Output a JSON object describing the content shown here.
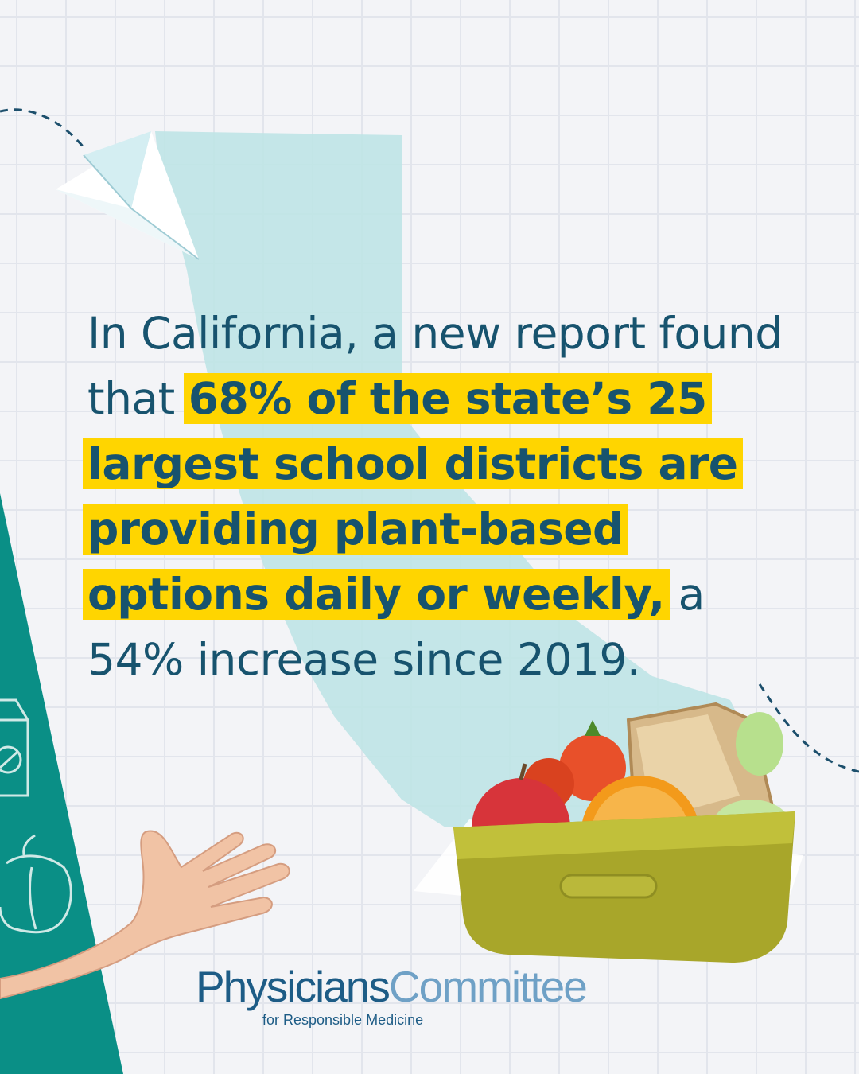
{
  "headline": {
    "intro": "In California, a new report found that ",
    "highlight": "68% of the state’s 25 largest school districts are providing plant-based options daily or weekly,",
    "outro": " a 54% increase since 2019."
  },
  "logo": {
    "word1": "Physicians",
    "word2": "Committee",
    "tagline": "for Responsible Medicine"
  },
  "colors": {
    "headline_text": "#17536e",
    "highlight": "#ffd500",
    "map_fill": "#bfe4e6",
    "teal_band": "#0a8f86",
    "logo_dark": "#1d5c86",
    "logo_light": "#6fa1c6"
  },
  "icons": [
    "california-map-shape",
    "paper-plane-icon",
    "dashed-flight-path",
    "milk-carton-icon",
    "bell-pepper-icon",
    "hand-illustration",
    "lunchbox-illustration"
  ]
}
